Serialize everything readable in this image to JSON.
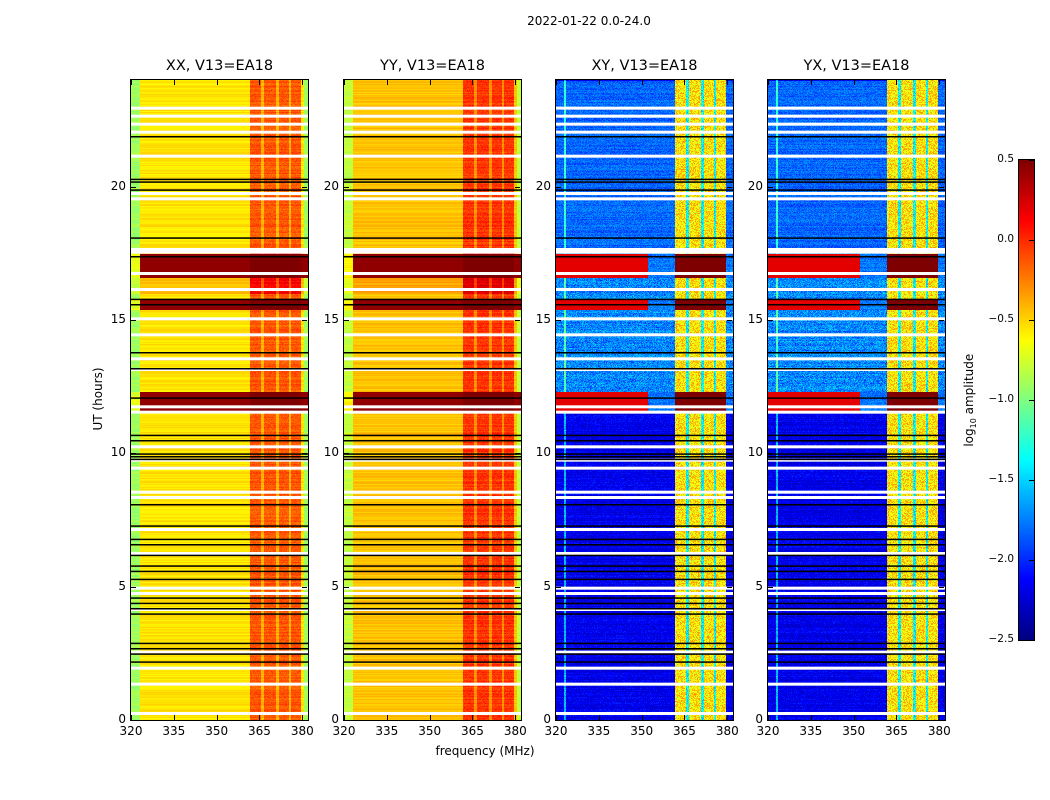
{
  "chart_data": {
    "type": "heatmap",
    "suptitle": "2022-01-22 0.0-24.0",
    "xlabel": "frequency (MHz)",
    "ylabel": "UT (hours)",
    "xlim": [
      320,
      382
    ],
    "ylim": [
      0,
      24
    ],
    "xticks": [
      320,
      335,
      350,
      365,
      380
    ],
    "yticks": [
      0,
      5,
      10,
      15,
      20
    ],
    "colormap": "jet",
    "colorbar": {
      "label_prefix": "log",
      "label_sub": "10",
      "label_suffix": " amplitude",
      "range": [
        -2.5,
        0.5
      ],
      "ticks": [
        "0.5",
        "0.0",
        "−0.5",
        "−1.0",
        "−1.5",
        "−2.0",
        "−2.5"
      ],
      "tick_values": [
        0.5,
        0.0,
        -0.5,
        -1.0,
        -1.5,
        -2.0,
        -2.5
      ]
    },
    "panels": [
      {
        "id": "XX",
        "title": "XX, V13=EA18",
        "kind": "parallel",
        "base_value": -0.55
      },
      {
        "id": "YY",
        "title": "YY, V13=EA18",
        "kind": "parallel",
        "base_value": -0.45
      },
      {
        "id": "XY",
        "title": "XY, V13=EA18",
        "kind": "cross",
        "base_value": -2.3
      },
      {
        "id": "YX",
        "title": "YX, V13=EA18",
        "kind": "cross",
        "base_value": -2.3
      }
    ],
    "rfi_band_mhz": [
      361.5,
      379.5
    ],
    "rfi_subbands_mhz": [
      [
        361.5,
        365.5
      ],
      [
        366.5,
        370.5
      ],
      [
        371.5,
        375.0
      ],
      [
        376.0,
        379.5
      ]
    ],
    "high_amplitude_hours": [
      [
        11.6,
        12.3
      ],
      [
        15.4,
        15.8
      ],
      [
        16.6,
        17.5
      ]
    ],
    "flagged_white_hours": [
      23.0,
      22.7,
      22.4,
      22.1,
      21.2,
      19.8,
      19.6,
      17.7,
      17.6,
      16.8,
      16.2,
      15.1,
      14.5,
      13.6,
      13.2,
      11.8,
      11.6,
      10.3,
      9.8,
      9.5,
      8.6,
      8.4,
      7.2,
      6.3,
      5.0,
      4.8,
      4.2,
      2.6,
      2.0,
      1.4,
      0.3
    ],
    "flagged_black_hours": [
      21.9,
      20.3,
      20.2,
      19.9,
      18.1,
      17.4,
      15.8,
      15.6,
      13.8,
      13.2,
      12.1,
      10.7,
      10.5,
      10.0,
      9.9,
      9.8,
      8.1,
      7.3,
      6.8,
      6.6,
      6.2,
      5.8,
      5.6,
      5.3,
      4.6,
      4.4,
      4.2,
      4.0,
      2.9,
      2.7,
      2.5,
      2.2
    ]
  }
}
